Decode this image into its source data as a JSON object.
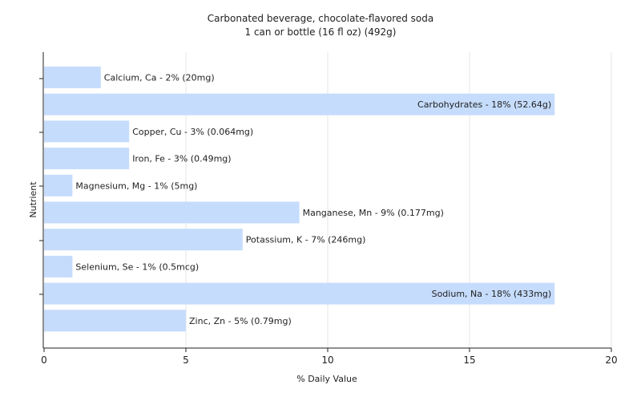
{
  "chart_data": {
    "type": "bar",
    "orientation": "horizontal",
    "title": "Carbonated beverage, chocolate-flavored soda",
    "subtitle": "1 can or bottle (16 fl oz) (492g)",
    "xlabel": "% Daily Value",
    "ylabel": "Nutrient",
    "xlim": [
      0,
      20
    ],
    "xticks": [
      0,
      5,
      10,
      15,
      20
    ],
    "grid": true,
    "bar_color": "#c6dcfc",
    "grid_color": "#e6e6e6",
    "categories": [
      "Calcium, Ca",
      "Carbohydrates",
      "Copper, Cu",
      "Iron, Fe",
      "Magnesium, Mg",
      "Manganese, Mn",
      "Potassium, K",
      "Selenium, Se",
      "Sodium, Na",
      "Zinc, Zn"
    ],
    "values": [
      2,
      18,
      3,
      3,
      1,
      9,
      7,
      1,
      18,
      5
    ],
    "labels": [
      "Calcium, Ca - 2% (20mg)",
      "Carbohydrates - 18% (52.64g)",
      "Copper, Cu - 3% (0.064mg)",
      "Iron, Fe - 3% (0.49mg)",
      "Magnesium, Mg - 1% (5mg)",
      "Manganese, Mn - 9% (0.177mg)",
      "Potassium, K - 7% (246mg)",
      "Selenium, Se - 1% (0.5mcg)",
      "Sodium, Na - 18% (433mg)",
      "Zinc, Zn - 5% (0.79mg)"
    ]
  }
}
